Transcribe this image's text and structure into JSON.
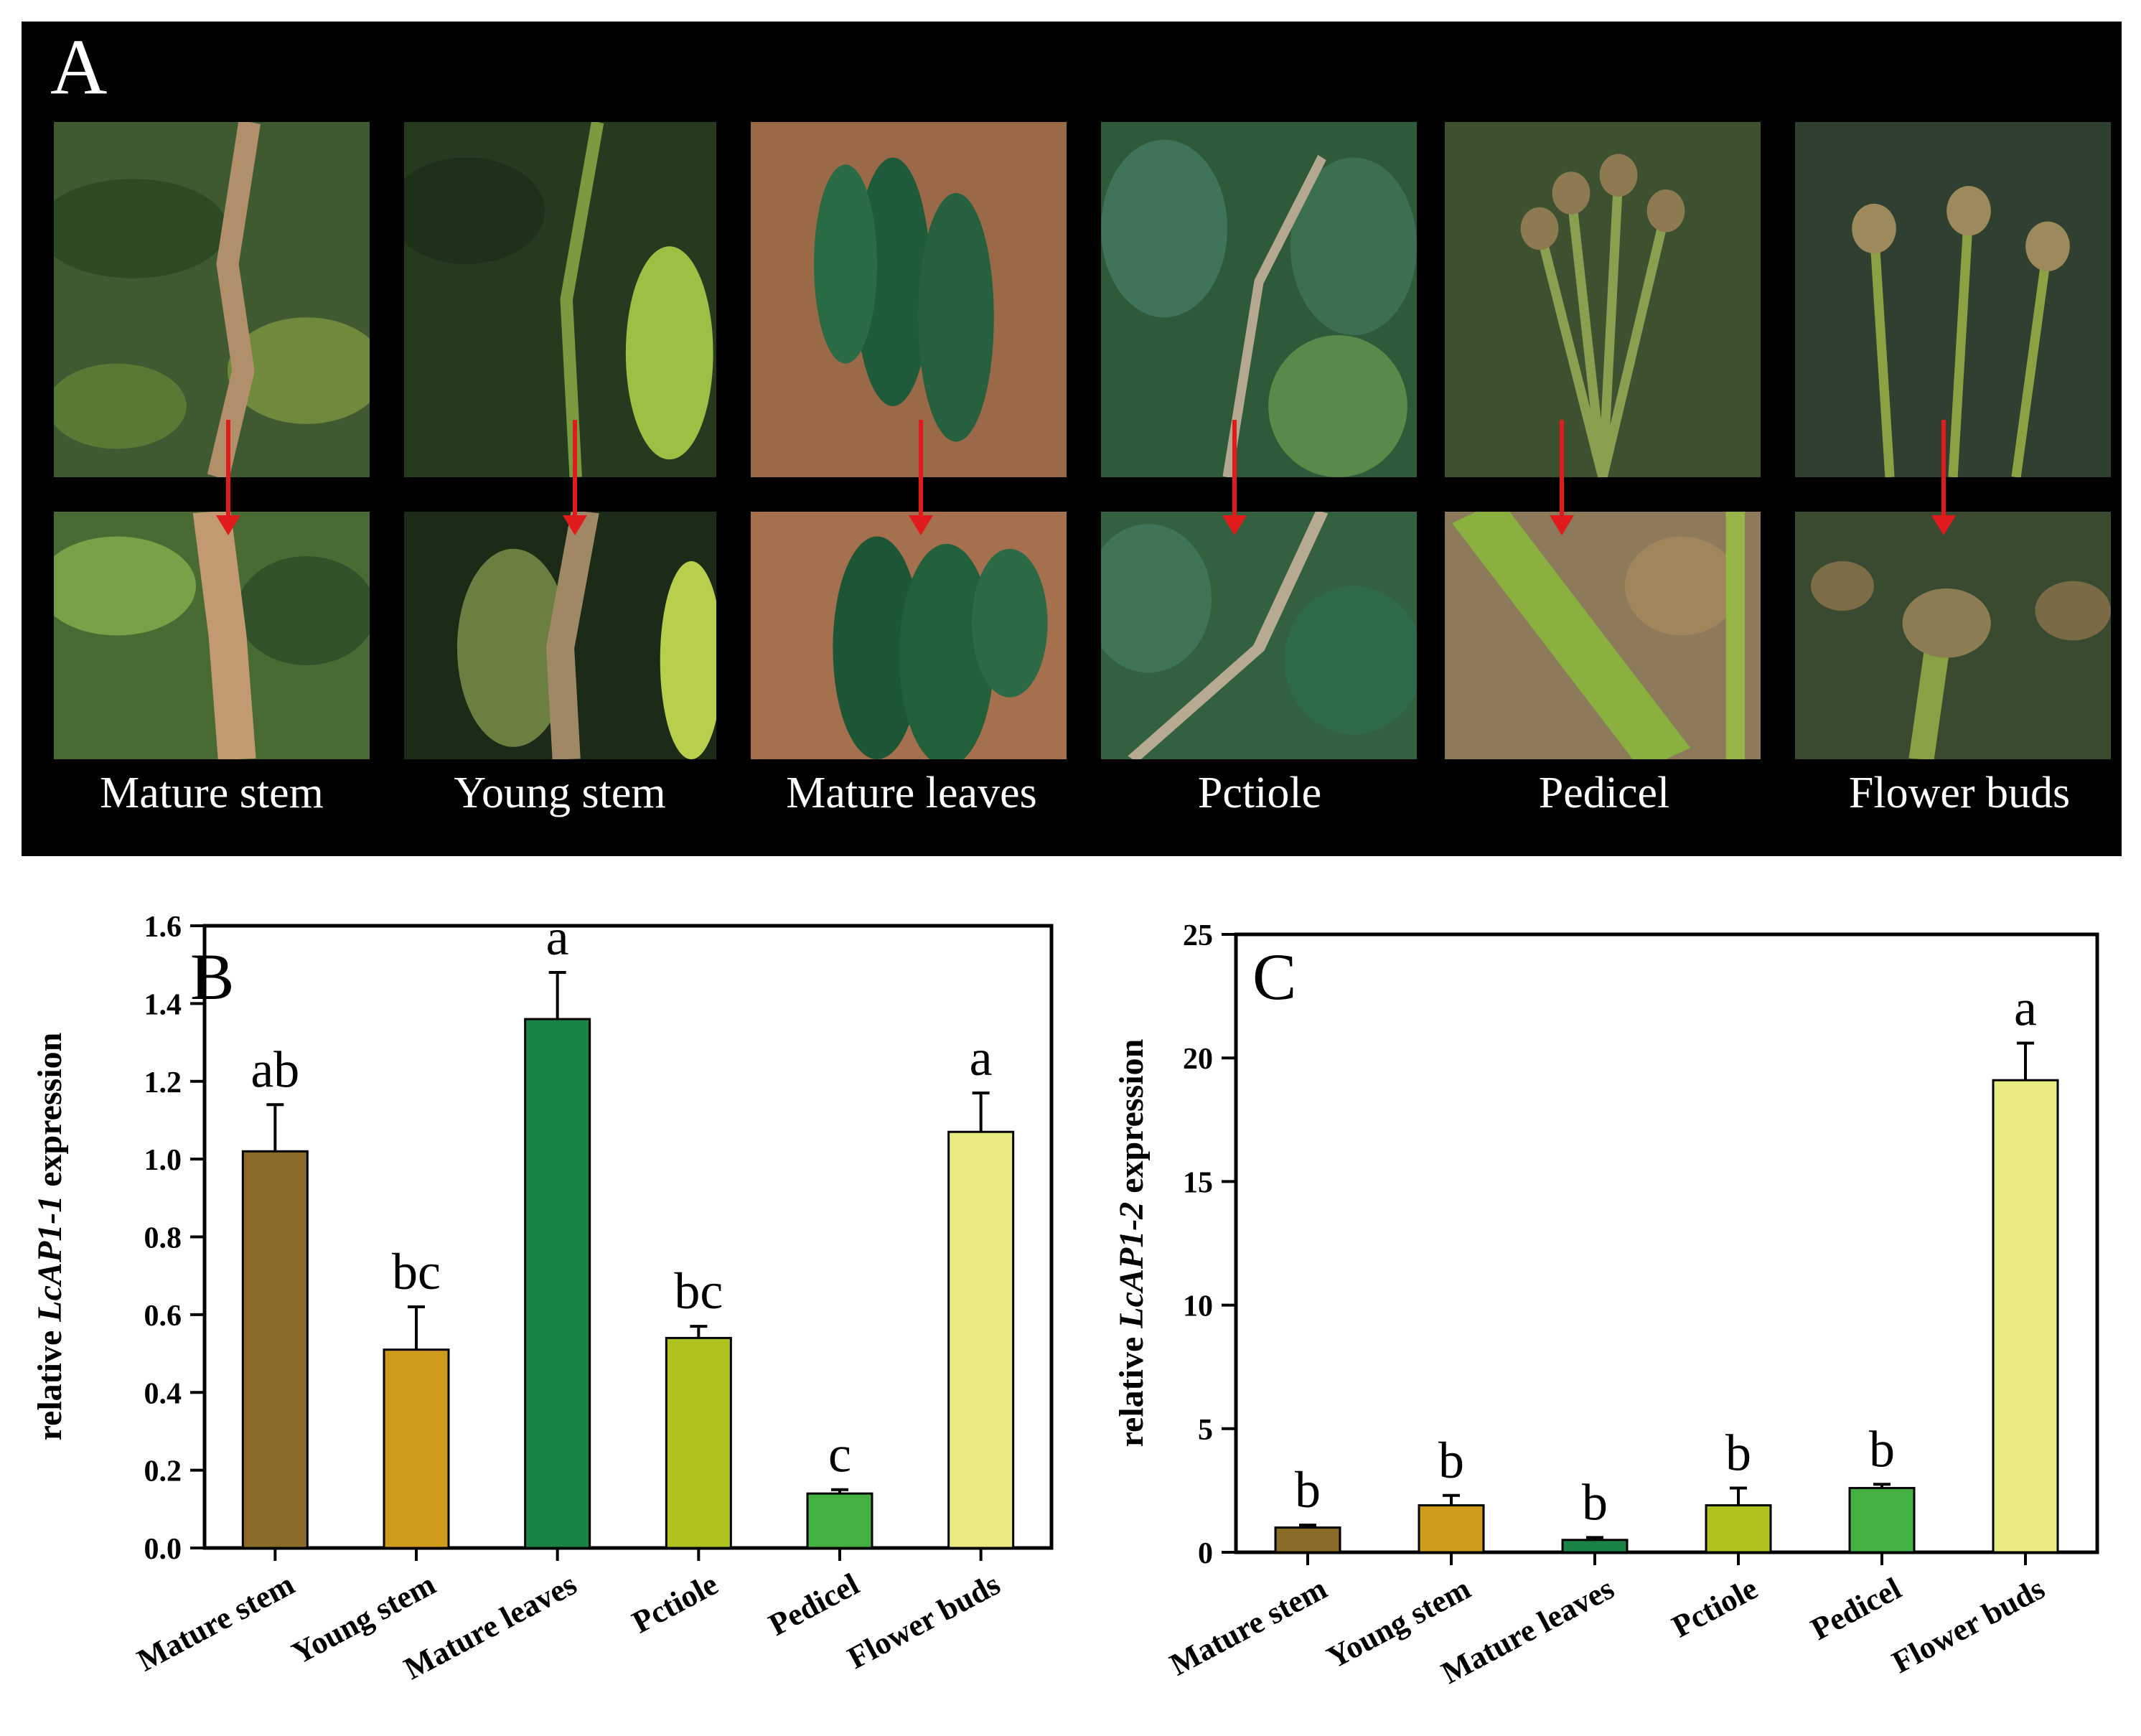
{
  "panel_a": {
    "letter": "A",
    "tissues": [
      "Mature stem",
      "Young stem",
      "Mature leaves",
      "Pctiole",
      "Pedicel",
      "Flower buds"
    ],
    "arrow_color": "#e11b1b"
  },
  "chart_data": [
    {
      "type": "bar",
      "panel": "B",
      "title": "",
      "xlabel": "",
      "ylabel_prefix": "relative ",
      "ylabel_gene": "LcAP1-1",
      "ylabel_suffix": " expression",
      "categories": [
        "Mature stem",
        "Young stem",
        "Mature leaves",
        "Pctiole",
        "Pedicel",
        "Flower buds"
      ],
      "values": [
        1.02,
        0.51,
        1.36,
        0.54,
        0.14,
        1.07
      ],
      "errors": [
        0.12,
        0.11,
        0.12,
        0.03,
        0.01,
        0.1
      ],
      "significance": [
        "ab",
        "bc",
        "a",
        "bc",
        "c",
        "a"
      ],
      "colors": [
        "#8a6a27",
        "#d09a1a",
        "#1a8446",
        "#b0c21e",
        "#44b042",
        "#e9eb80"
      ],
      "ylim": [
        0,
        1.6
      ],
      "yticks": [
        "0.0",
        "0.2",
        "0.4",
        "0.6",
        "0.8",
        "1.0",
        "1.2",
        "1.4",
        "1.6"
      ]
    },
    {
      "type": "bar",
      "panel": "C",
      "title": "",
      "xlabel": "",
      "ylabel_prefix": "relative ",
      "ylabel_gene": "LcAP1-2",
      "ylabel_suffix": " expression",
      "categories": [
        "Mature stem",
        "Young stem",
        "Mature leaves",
        "Pctiole",
        "Pedicel",
        "Flower buds"
      ],
      "values": [
        1.0,
        1.9,
        0.5,
        1.9,
        2.6,
        19.1
      ],
      "errors": [
        0.1,
        0.4,
        0.1,
        0.7,
        0.15,
        1.5
      ],
      "significance": [
        "b",
        "b",
        "b",
        "b",
        "b",
        "a"
      ],
      "colors": [
        "#8a6a27",
        "#d09a1a",
        "#1a8446",
        "#b0c21e",
        "#44b042",
        "#e9eb80"
      ],
      "ylim": [
        0,
        25
      ],
      "yticks": [
        "0",
        "5",
        "10",
        "15",
        "20",
        "25"
      ]
    }
  ]
}
